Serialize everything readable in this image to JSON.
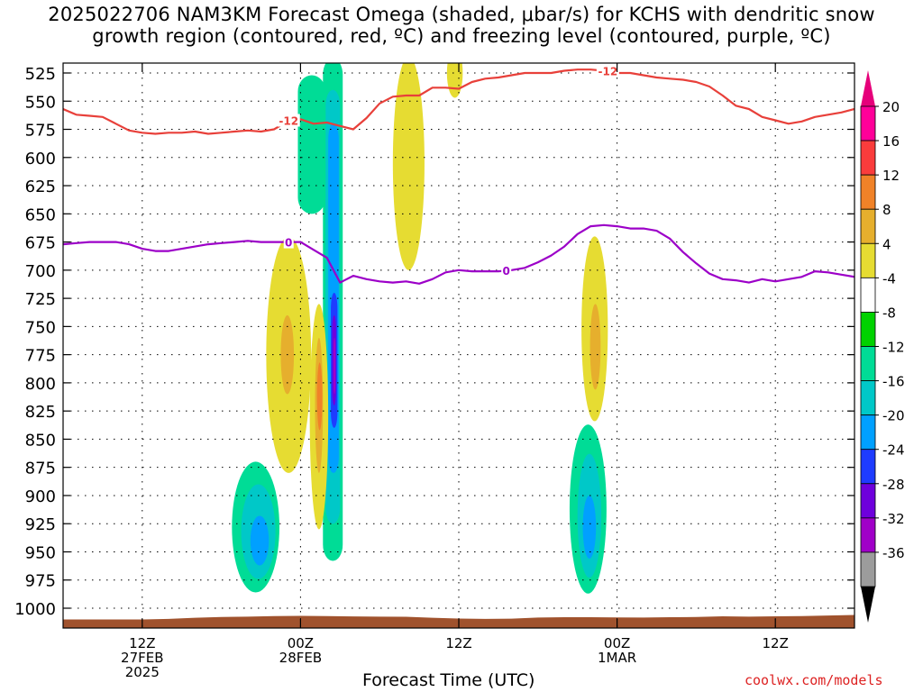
{
  "title": {
    "line1": "2025022706 NAM3KM Forecast Omega (shaded, μbar/s) for KCHS with dendritic snow",
    "line2": "growth region (contoured, red, ºC) and freezing level (contoured, purple, ºC)"
  },
  "xaxis_label": "Forecast Time (UTC)",
  "credit": "coolwx.com/models",
  "chart_data": {
    "type": "heatmap",
    "title": "2025022706 NAM3KM Forecast Omega (shaded, μbar/s) for KCHS with dendritic snow growth region (contoured, red, ºC) and freezing level (contoured, purple, ºC)",
    "xlabel": "Forecast Time (UTC)",
    "ylabel": "",
    "x_units": "forecast hour from 2025-02-27 06Z",
    "xlim": [
      0,
      60
    ],
    "y_units": "hPa",
    "ylim": [
      1010,
      515
    ],
    "y_ticks": [
      525,
      550,
      575,
      600,
      625,
      650,
      675,
      700,
      725,
      750,
      775,
      800,
      825,
      850,
      875,
      900,
      925,
      950,
      975,
      1000
    ],
    "x_ticks": [
      {
        "hour": 6,
        "label": [
          "12Z",
          "27FEB",
          "2025"
        ]
      },
      {
        "hour": 18,
        "label": [
          "00Z",
          "28FEB"
        ]
      },
      {
        "hour": 30,
        "label": [
          "12Z"
        ]
      },
      {
        "hour": 42,
        "label": [
          "00Z",
          "1MAR"
        ]
      },
      {
        "hour": 54,
        "label": [
          "12Z"
        ]
      }
    ],
    "grid": true,
    "colorbar": {
      "levels": [
        -36,
        -32,
        -28,
        -24,
        -20,
        -16,
        -12,
        -8,
        -4,
        4,
        8,
        12,
        16,
        20
      ],
      "colors": [
        "#9c9c9c",
        "#a000c8",
        "#6e00dc",
        "#1e3cff",
        "#00a0ff",
        "#00c8c8",
        "#00dc96",
        "#00d200",
        "#ffffff",
        "#e6dc32",
        "#e6af2d",
        "#f08228",
        "#fa3c3c",
        "#ff0099"
      ],
      "under_color": "#000000",
      "over_color": "#e6007a"
    },
    "series": [
      {
        "name": "-12",
        "color": "#e8403a",
        "points": [
          [
            0,
            557
          ],
          [
            1,
            562
          ],
          [
            2,
            563
          ],
          [
            3,
            564
          ],
          [
            4,
            570
          ],
          [
            5,
            576
          ],
          [
            6,
            578
          ],
          [
            7,
            579
          ],
          [
            8,
            578
          ],
          [
            9,
            578
          ],
          [
            10,
            577
          ],
          [
            11,
            579
          ],
          [
            12,
            578
          ],
          [
            13,
            577
          ],
          [
            14,
            576
          ],
          [
            15,
            577
          ],
          [
            16,
            575
          ],
          [
            17,
            568
          ],
          [
            18,
            566
          ],
          [
            19,
            570
          ],
          [
            20,
            569
          ],
          [
            21,
            572
          ],
          [
            22,
            575
          ],
          [
            23,
            565
          ],
          [
            24,
            552
          ],
          [
            25,
            546
          ],
          [
            26,
            545
          ],
          [
            27,
            545
          ],
          [
            28,
            538
          ],
          [
            29,
            538
          ],
          [
            30,
            539
          ],
          [
            31,
            533
          ],
          [
            32,
            530
          ],
          [
            33,
            529
          ],
          [
            34,
            527
          ],
          [
            35,
            525
          ],
          [
            36,
            525
          ],
          [
            37,
            525
          ],
          [
            38,
            523
          ],
          [
            39,
            522
          ],
          [
            40,
            522
          ],
          [
            41,
            523
          ],
          [
            42,
            525
          ],
          [
            43,
            525
          ],
          [
            44,
            527
          ],
          [
            45,
            529
          ],
          [
            46,
            530
          ],
          [
            47,
            531
          ],
          [
            48,
            533
          ],
          [
            49,
            537
          ],
          [
            50,
            545
          ],
          [
            51,
            554
          ],
          [
            52,
            557
          ],
          [
            53,
            564
          ],
          [
            54,
            567
          ],
          [
            55,
            570
          ],
          [
            56,
            568
          ],
          [
            57,
            564
          ],
          [
            58,
            562
          ],
          [
            59,
            560
          ],
          [
            60,
            557
          ]
        ]
      },
      {
        "name": "0",
        "color": "#9c00c8",
        "points": [
          [
            0,
            677
          ],
          [
            1,
            676
          ],
          [
            2,
            675
          ],
          [
            3,
            675
          ],
          [
            4,
            675
          ],
          [
            5,
            677
          ],
          [
            6,
            681
          ],
          [
            7,
            683
          ],
          [
            8,
            683
          ],
          [
            9,
            681
          ],
          [
            10,
            679
          ],
          [
            11,
            677
          ],
          [
            12,
            676
          ],
          [
            13,
            675
          ],
          [
            14,
            674
          ],
          [
            15,
            675
          ],
          [
            16,
            675
          ],
          [
            17,
            675
          ],
          [
            18,
            675
          ],
          [
            19,
            682
          ],
          [
            20,
            689
          ],
          [
            21,
            711
          ],
          [
            22,
            705
          ],
          [
            23,
            708
          ],
          [
            24,
            710
          ],
          [
            25,
            711
          ],
          [
            26,
            710
          ],
          [
            27,
            712
          ],
          [
            28,
            708
          ],
          [
            29,
            702
          ],
          [
            30,
            700
          ],
          [
            31,
            701
          ],
          [
            32,
            701
          ],
          [
            33,
            701
          ],
          [
            34,
            700
          ],
          [
            35,
            698
          ],
          [
            36,
            693
          ],
          [
            37,
            687
          ],
          [
            38,
            679
          ],
          [
            39,
            668
          ],
          [
            40,
            661
          ],
          [
            41,
            660
          ],
          [
            42,
            661
          ],
          [
            43,
            663
          ],
          [
            44,
            663
          ],
          [
            45,
            665
          ],
          [
            46,
            672
          ],
          [
            47,
            684
          ],
          [
            48,
            694
          ],
          [
            49,
            703
          ],
          [
            50,
            708
          ],
          [
            51,
            709
          ],
          [
            52,
            711
          ],
          [
            53,
            708
          ],
          [
            54,
            710
          ],
          [
            55,
            708
          ],
          [
            56,
            706
          ],
          [
            57,
            701
          ],
          [
            58,
            702
          ],
          [
            59,
            704
          ],
          [
            60,
            706
          ]
        ]
      }
    ],
    "contour_labels": [
      {
        "series": "-12",
        "text": "-12",
        "hour": 17.1,
        "hPa": 567
      },
      {
        "series": "-12",
        "text": "-12",
        "hour": 41.3,
        "hPa": 523
      },
      {
        "series": "0",
        "text": "0",
        "hour": 17.1,
        "hPa": 675
      },
      {
        "series": "0",
        "text": "0",
        "hour": 33.6,
        "hPa": 700
      }
    ],
    "omega_features": [
      {
        "name": "updraft column hour 20.6",
        "shape": "column",
        "levels": [
          {
            "value": -8,
            "x0": 19.7,
            "x1": 21.2,
            "bottom": 958,
            "top": 512
          },
          {
            "value": -12,
            "x0": 19.9,
            "x1": 21.0,
            "bottom": 925,
            "top": 540
          },
          {
            "value": -16,
            "x0": 20.1,
            "x1": 20.9,
            "bottom": 880,
            "top": 570
          },
          {
            "value": -20,
            "x0": 20.3,
            "x1": 20.8,
            "bottom": 840,
            "top": 720
          },
          {
            "value": -24,
            "x0": 20.4,
            "x1": 20.7,
            "bottom": 820,
            "top": 740
          },
          {
            "value": -28,
            "x0": 20.5,
            "x1": 20.65,
            "bottom": 810,
            "top": 760
          }
        ]
      },
      {
        "name": "updraft upper band hour 18.5",
        "shape": "column",
        "levels": [
          {
            "value": -8,
            "x0": 17.8,
            "x1": 19.9,
            "bottom": 650,
            "top": 527
          }
        ]
      },
      {
        "name": "low-level updraft hour 14.5",
        "shape": "blob",
        "levels": [
          {
            "value": -8,
            "cx": 14.6,
            "cy": 928,
            "rx": 1.8,
            "ry": 58
          },
          {
            "value": -12,
            "cx": 14.8,
            "cy": 932,
            "rx": 1.3,
            "ry": 42
          },
          {
            "value": -16,
            "cx": 14.9,
            "cy": 940,
            "rx": 0.7,
            "ry": 22
          }
        ]
      },
      {
        "name": "low-level updraft hour 39.8",
        "shape": "blob",
        "levels": [
          {
            "value": -8,
            "cx": 39.8,
            "cy": 912,
            "rx": 1.4,
            "ry": 75
          },
          {
            "value": -12,
            "cx": 39.9,
            "cy": 918,
            "rx": 0.9,
            "ry": 55
          },
          {
            "value": -16,
            "cx": 39.9,
            "cy": 928,
            "rx": 0.5,
            "ry": 28
          }
        ]
      },
      {
        "name": "subsidence hour 17.2",
        "shape": "blob",
        "levels": [
          {
            "value": 4,
            "cx": 17.1,
            "cy": 775,
            "rx": 1.7,
            "ry": 105
          },
          {
            "value": 8,
            "cx": 17.0,
            "cy": 775,
            "rx": 0.5,
            "ry": 35
          }
        ]
      },
      {
        "name": "subsidence hour 19.4",
        "shape": "blob",
        "levels": [
          {
            "value": 4,
            "cx": 19.4,
            "cy": 830,
            "rx": 0.7,
            "ry": 100
          },
          {
            "value": 8,
            "cx": 19.4,
            "cy": 820,
            "rx": 0.3,
            "ry": 60
          },
          {
            "value": 12,
            "cx": 19.45,
            "cy": 812,
            "rx": 0.2,
            "ry": 30
          }
        ]
      },
      {
        "name": "subsidence hour 26.2",
        "shape": "blob",
        "levels": [
          {
            "value": 4,
            "cx": 26.2,
            "cy": 605,
            "rx": 1.2,
            "ry": 95
          }
        ]
      },
      {
        "name": "subsidence hour 29.7",
        "shape": "blob",
        "levels": [
          {
            "value": 4,
            "cx": 29.7,
            "cy": 525,
            "rx": 0.6,
            "ry": 22
          }
        ]
      },
      {
        "name": "subsidence hour 40.3",
        "shape": "blob",
        "levels": [
          {
            "value": 4,
            "cx": 40.3,
            "cy": 752,
            "rx": 1.0,
            "ry": 82
          },
          {
            "value": 8,
            "cx": 40.35,
            "cy": 768,
            "rx": 0.4,
            "ry": 38
          }
        ]
      }
    ],
    "surface_pressure": [
      [
        0,
        1010
      ],
      [
        2,
        1010
      ],
      [
        4,
        1010
      ],
      [
        6,
        1010
      ],
      [
        8,
        1009.5
      ],
      [
        10,
        1008.5
      ],
      [
        12,
        1007.8
      ],
      [
        14,
        1007.5
      ],
      [
        16,
        1007
      ],
      [
        18,
        1006.8
      ],
      [
        20,
        1007
      ],
      [
        22,
        1007.3
      ],
      [
        24,
        1007.5
      ],
      [
        26,
        1007.6
      ],
      [
        28,
        1008.5
      ],
      [
        30,
        1009.2
      ],
      [
        32,
        1009.5
      ],
      [
        34,
        1009.3
      ],
      [
        36,
        1008.3
      ],
      [
        38,
        1008
      ],
      [
        40,
        1008
      ],
      [
        42,
        1008.2
      ],
      [
        44,
        1008.3
      ],
      [
        46,
        1008
      ],
      [
        48,
        1007.8
      ],
      [
        50,
        1007.2
      ],
      [
        52,
        1007.5
      ],
      [
        54,
        1007.2
      ],
      [
        56,
        1007
      ],
      [
        58,
        1006.5
      ],
      [
        60,
        1006
      ]
    ]
  }
}
